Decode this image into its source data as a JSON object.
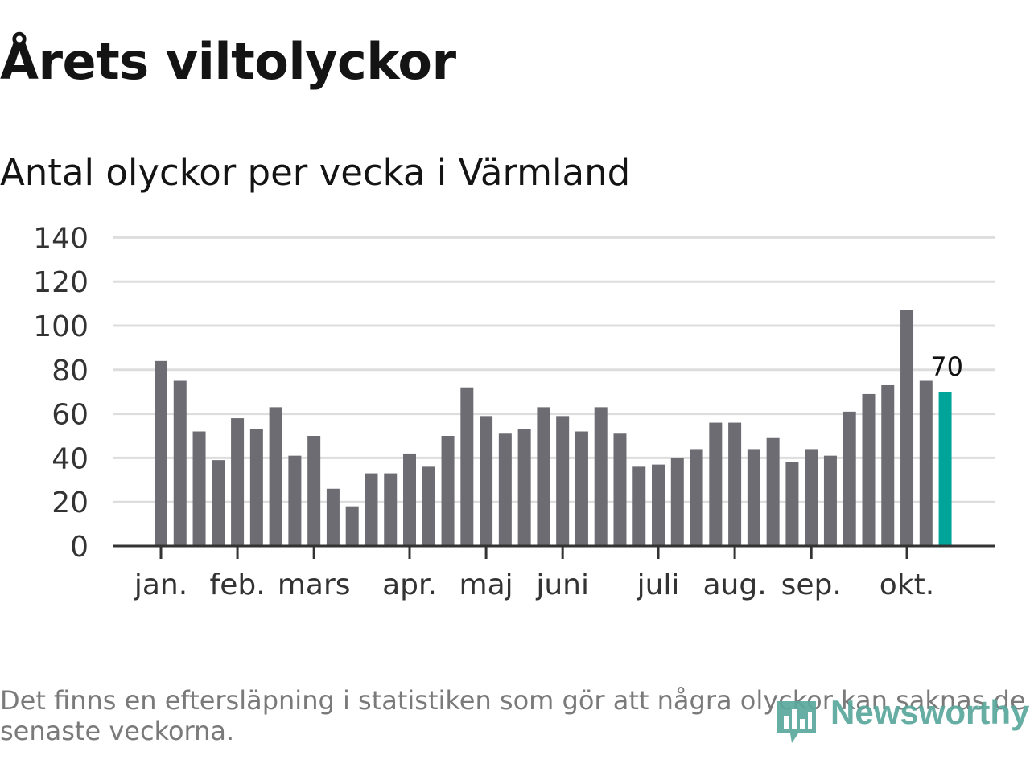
{
  "title": "Årets viltolyckor",
  "subtitle": "Antal olyckor per vecka i Värmland",
  "footnote": "Det finns en eftersläpning i statistiken som gör att några olyckor kan saknas de senaste veckorna.",
  "brand": {
    "name": "Newsworthy",
    "color": "#5aa89d"
  },
  "colors": {
    "bar": "#6d6c72",
    "highlight": "#00a499",
    "grid": "#dddddd",
    "axis": "#333333"
  },
  "chart_data": {
    "type": "bar",
    "title": "Antal olyckor per vecka i Värmland",
    "xlabel": "",
    "ylabel": "",
    "ylim": [
      0,
      140
    ],
    "yticks": [
      0,
      20,
      40,
      60,
      80,
      100,
      120,
      140
    ],
    "grid": true,
    "weeks": [
      1,
      2,
      3,
      4,
      5,
      6,
      7,
      8,
      9,
      10,
      11,
      12,
      13,
      14,
      15,
      16,
      17,
      18,
      19,
      20,
      21,
      22,
      23,
      24,
      25,
      26,
      27,
      28,
      29,
      30,
      31,
      32,
      33,
      34,
      35,
      36,
      37,
      38,
      39,
      40,
      41,
      42
    ],
    "values": [
      84,
      75,
      52,
      39,
      58,
      53,
      63,
      41,
      50,
      26,
      18,
      33,
      33,
      42,
      36,
      50,
      72,
      59,
      51,
      53,
      63,
      59,
      52,
      63,
      51,
      36,
      37,
      40,
      44,
      56,
      56,
      44,
      49,
      38,
      44,
      41,
      61,
      69,
      73,
      107,
      75,
      70
    ],
    "highlight_index": 41,
    "highlight_label": "70",
    "month_ticks": [
      {
        "label": "jan.",
        "week": 1
      },
      {
        "label": "feb.",
        "week": 5
      },
      {
        "label": "mars",
        "week": 9
      },
      {
        "label": "apr.",
        "week": 14
      },
      {
        "label": "maj",
        "week": 18
      },
      {
        "label": "juni",
        "week": 22
      },
      {
        "label": "juli",
        "week": 27
      },
      {
        "label": "aug.",
        "week": 31
      },
      {
        "label": "sep.",
        "week": 35
      },
      {
        "label": "okt.",
        "week": 40
      }
    ]
  }
}
